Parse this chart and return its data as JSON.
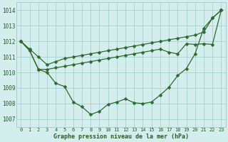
{
  "title": "Graphe pression niveau de la mer (hPa)",
  "hours": [
    0,
    1,
    2,
    3,
    4,
    5,
    6,
    7,
    8,
    9,
    10,
    11,
    12,
    13,
    14,
    15,
    16,
    17,
    18,
    19,
    20,
    21,
    22,
    23
  ],
  "ylim": [
    1006.5,
    1014.5
  ],
  "yticks": [
    1007,
    1008,
    1009,
    1010,
    1011,
    1012,
    1013,
    1014
  ],
  "series1_straight": [
    1012.0,
    1011.5,
    1011.0,
    1010.5,
    1010.7,
    1010.9,
    1011.0,
    1011.1,
    1011.2,
    1011.3,
    1011.4,
    1011.5,
    1011.6,
    1011.7,
    1011.8,
    1011.9,
    1012.0,
    1012.1,
    1012.2,
    1012.3,
    1012.4,
    1012.6,
    1013.5,
    1014.0
  ],
  "series2_mid": [
    1012.0,
    1011.4,
    1010.2,
    1010.2,
    1010.3,
    1010.4,
    1010.5,
    1010.6,
    1010.7,
    1010.8,
    1010.9,
    1011.0,
    1011.1,
    1011.2,
    1011.3,
    1011.4,
    1011.5,
    1011.3,
    1011.2,
    1011.85,
    1011.8,
    1011.85,
    1011.8,
    1014.0
  ],
  "series3_dip": [
    1012.0,
    1011.4,
    1010.2,
    1010.0,
    1009.3,
    1009.1,
    1008.1,
    1007.8,
    1007.3,
    1007.5,
    1007.95,
    1008.1,
    1008.3,
    1008.05,
    1008.0,
    1008.1,
    1008.55,
    1009.05,
    1009.8,
    1010.25,
    1011.2,
    1012.85,
    1013.5,
    1014.0
  ],
  "line_color": "#2d6a2d",
  "bg_color": "#d4eeed",
  "grid_color": "#aacfcf",
  "label_color": "#2d5a2d",
  "font_family": "monospace"
}
